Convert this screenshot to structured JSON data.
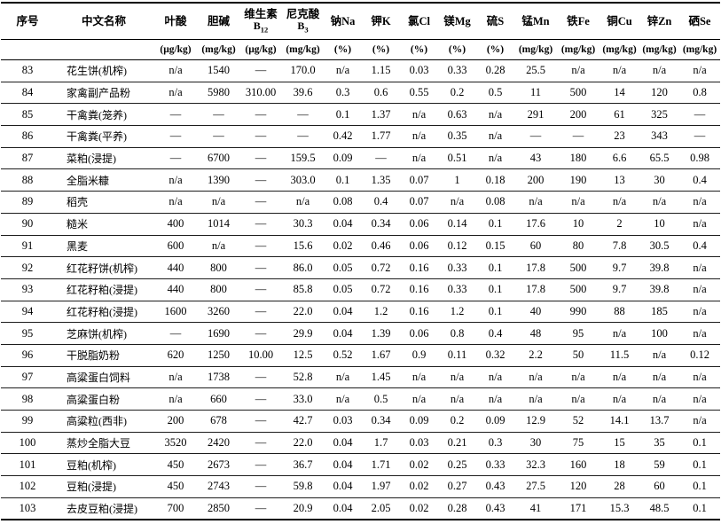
{
  "table": {
    "columns": [
      {
        "label": "序号",
        "unit": ""
      },
      {
        "label": "中文名称",
        "unit": ""
      },
      {
        "label": "叶酸",
        "unit": "(μg/kg)"
      },
      {
        "label": "胆碱",
        "unit": "(mg/kg)"
      },
      {
        "label": "维生素",
        "base": "B",
        "sub": "12",
        "unit": "(μg/kg)"
      },
      {
        "label": "尼克酸",
        "base": "B",
        "sub": "3",
        "unit": "(mg/kg)"
      },
      {
        "label": "钠Na",
        "unit": "(%)"
      },
      {
        "label": "钾K",
        "unit": "(%)"
      },
      {
        "label": "氯Cl",
        "unit": "(%)"
      },
      {
        "label": "镁Mg",
        "unit": "(%)"
      },
      {
        "label": "硫S",
        "unit": "(%)"
      },
      {
        "label": "锰Mn",
        "unit": "(mg/kg)"
      },
      {
        "label": "铁Fe",
        "unit": "(mg/kg)"
      },
      {
        "label": "铜Cu",
        "unit": "(mg/kg)"
      },
      {
        "label": "锌Zn",
        "unit": "(mg/kg)"
      },
      {
        "label": "硒Se",
        "unit": "(mg/kg)"
      }
    ],
    "rows": [
      [
        "83",
        "花生饼(机榨)",
        "n/a",
        "1540",
        "—",
        "170.0",
        "n/a",
        "1.15",
        "0.03",
        "0.33",
        "0.28",
        "25.5",
        "n/a",
        "n/a",
        "n/a",
        "n/a"
      ],
      [
        "84",
        "家禽副产品粉",
        "n/a",
        "5980",
        "310.00",
        "39.6",
        "0.3",
        "0.6",
        "0.55",
        "0.2",
        "0.5",
        "11",
        "500",
        "14",
        "120",
        "0.8"
      ],
      [
        "85",
        "干禽粪(笼养)",
        "—",
        "—",
        "—",
        "—",
        "0.1",
        "1.37",
        "n/a",
        "0.63",
        "n/a",
        "291",
        "200",
        "61",
        "325",
        "—"
      ],
      [
        "86",
        "干禽粪(平养)",
        "—",
        "—",
        "—",
        "—",
        "0.42",
        "1.77",
        "n/a",
        "0.35",
        "n/a",
        "—",
        "—",
        "23",
        "343",
        "—"
      ],
      [
        "87",
        "菜粕(浸提)",
        "—",
        "6700",
        "—",
        "159.5",
        "0.09",
        "—",
        "n/a",
        "0.51",
        "n/a",
        "43",
        "180",
        "6.6",
        "65.5",
        "0.98"
      ],
      [
        "88",
        "全脂米糠",
        "n/a",
        "1390",
        "—",
        "303.0",
        "0.1",
        "1.35",
        "0.07",
        "1",
        "0.18",
        "200",
        "190",
        "13",
        "30",
        "0.4"
      ],
      [
        "89",
        "稻壳",
        "n/a",
        "n/a",
        "—",
        "n/a",
        "0.08",
        "0.4",
        "0.07",
        "n/a",
        "0.08",
        "n/a",
        "n/a",
        "n/a",
        "n/a",
        "n/a"
      ],
      [
        "90",
        "糙米",
        "400",
        "1014",
        "—",
        "30.3",
        "0.04",
        "0.34",
        "0.06",
        "0.14",
        "0.1",
        "17.6",
        "10",
        "2",
        "10",
        "n/a"
      ],
      [
        "91",
        "黑麦",
        "600",
        "n/a",
        "—",
        "15.6",
        "0.02",
        "0.46",
        "0.06",
        "0.12",
        "0.15",
        "60",
        "80",
        "7.8",
        "30.5",
        "0.4"
      ],
      [
        "92",
        "红花籽饼(机榨)",
        "440",
        "800",
        "—",
        "86.0",
        "0.05",
        "0.72",
        "0.16",
        "0.33",
        "0.1",
        "17.8",
        "500",
        "9.7",
        "39.8",
        "n/a"
      ],
      [
        "93",
        "红花籽粕(浸提)",
        "440",
        "800",
        "—",
        "85.8",
        "0.05",
        "0.72",
        "0.16",
        "0.33",
        "0.1",
        "17.8",
        "500",
        "9.7",
        "39.8",
        "n/a"
      ],
      [
        "94",
        "红花籽粕(浸提)",
        "1600",
        "3260",
        "—",
        "22.0",
        "0.04",
        "1.2",
        "0.16",
        "1.2",
        "0.1",
        "40",
        "990",
        "88",
        "185",
        "n/a"
      ],
      [
        "95",
        "芝麻饼(机榨)",
        "—",
        "1690",
        "—",
        "29.9",
        "0.04",
        "1.39",
        "0.06",
        "0.8",
        "0.4",
        "48",
        "95",
        "n/a",
        "100",
        "n/a"
      ],
      [
        "96",
        "干脱脂奶粉",
        "620",
        "1250",
        "10.00",
        "12.5",
        "0.52",
        "1.67",
        "0.9",
        "0.11",
        "0.32",
        "2.2",
        "50",
        "11.5",
        "n/a",
        "0.12"
      ],
      [
        "97",
        "高粱蛋白饲料",
        "n/a",
        "1738",
        "—",
        "52.8",
        "n/a",
        "1.45",
        "n/a",
        "n/a",
        "n/a",
        "n/a",
        "n/a",
        "n/a",
        "n/a",
        "n/a"
      ],
      [
        "98",
        "高粱蛋白粉",
        "n/a",
        "660",
        "—",
        "33.0",
        "n/a",
        "0.5",
        "n/a",
        "n/a",
        "n/a",
        "n/a",
        "n/a",
        "n/a",
        "n/a",
        "n/a"
      ],
      [
        "99",
        "高粱粒(西非)",
        "200",
        "678",
        "—",
        "42.7",
        "0.03",
        "0.34",
        "0.09",
        "0.2",
        "0.09",
        "12.9",
        "52",
        "14.1",
        "13.7",
        "n/a"
      ],
      [
        "100",
        "蒸炒全脂大豆",
        "3520",
        "2420",
        "—",
        "22.0",
        "0.04",
        "1.7",
        "0.03",
        "0.21",
        "0.3",
        "30",
        "75",
        "15",
        "35",
        "0.1"
      ],
      [
        "101",
        "豆粕(机榨)",
        "450",
        "2673",
        "—",
        "36.7",
        "0.04",
        "1.71",
        "0.02",
        "0.25",
        "0.33",
        "32.3",
        "160",
        "18",
        "59",
        "0.1"
      ],
      [
        "102",
        "豆粕(浸提)",
        "450",
        "2743",
        "—",
        "59.8",
        "0.04",
        "1.97",
        "0.02",
        "0.27",
        "0.43",
        "27.5",
        "120",
        "28",
        "60",
        "0.1"
      ],
      [
        "103",
        "去皮豆粕(浸提)",
        "700",
        "2850",
        "—",
        "20.9",
        "0.04",
        "2.05",
        "0.02",
        "0.28",
        "0.43",
        "41",
        "171",
        "15.3",
        "48.5",
        "0.1"
      ]
    ]
  }
}
